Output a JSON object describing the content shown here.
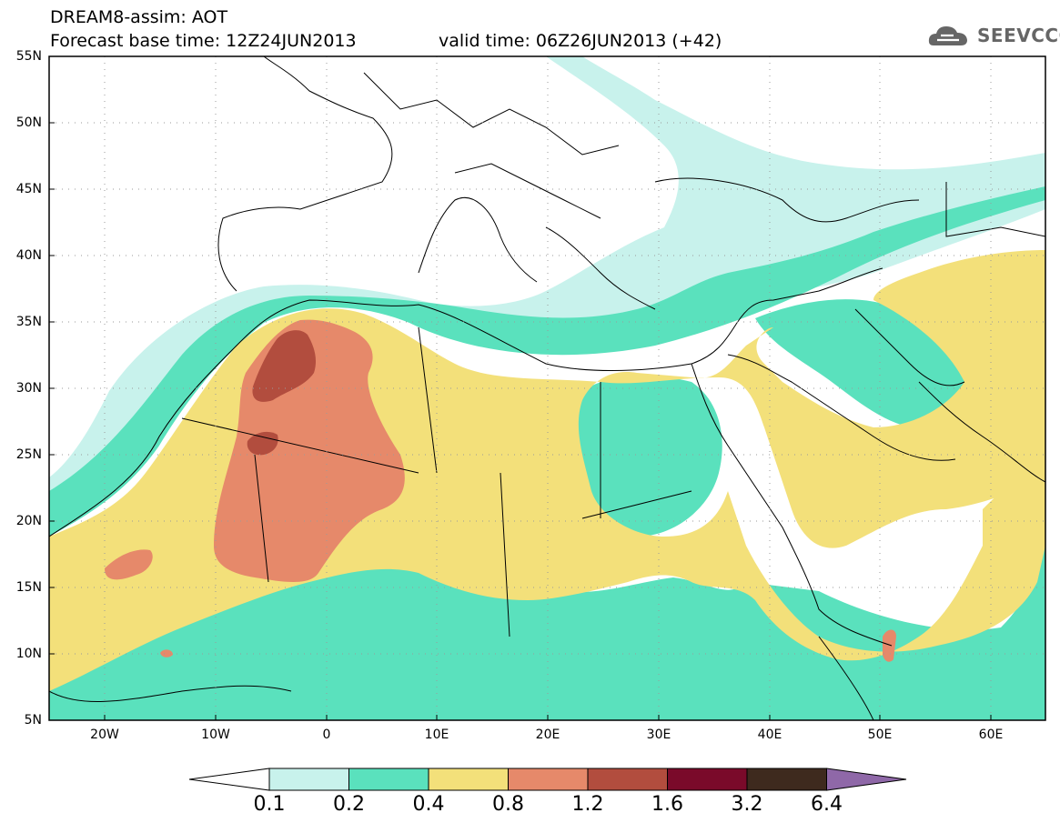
{
  "header": {
    "title_line1": "DREAM8-assim: AOT",
    "title_line2": "Forecast base time: 12Z24JUN2013",
    "valid_time": "valid time: 06Z26JUN2013 (+42)",
    "logo_text": "SEEVCCC"
  },
  "map": {
    "region": "North Africa, Europe and Middle East",
    "lon_range": [
      -25,
      65
    ],
    "lat_range": [
      5,
      55
    ],
    "lat_labels": [
      "55N",
      "50N",
      "45N",
      "40N",
      "35N",
      "30N",
      "25N",
      "20N",
      "15N",
      "10N",
      "5N"
    ],
    "lon_labels": [
      "20W",
      "10W",
      "0",
      "10E",
      "20E",
      "30E",
      "40E",
      "50E",
      "60E"
    ]
  },
  "colorbar": {
    "labels": [
      "0.1",
      "0.2",
      "0.4",
      "0.8",
      "1.2",
      "1.6",
      "3.2",
      "6.4"
    ],
    "colors": [
      "#ffffff",
      "#c8f2ec",
      "#5ae1bd",
      "#f3e07a",
      "#e6896a",
      "#b24d3e",
      "#7a0a2a",
      "#3e2a1e",
      "#8f68a8"
    ]
  }
}
